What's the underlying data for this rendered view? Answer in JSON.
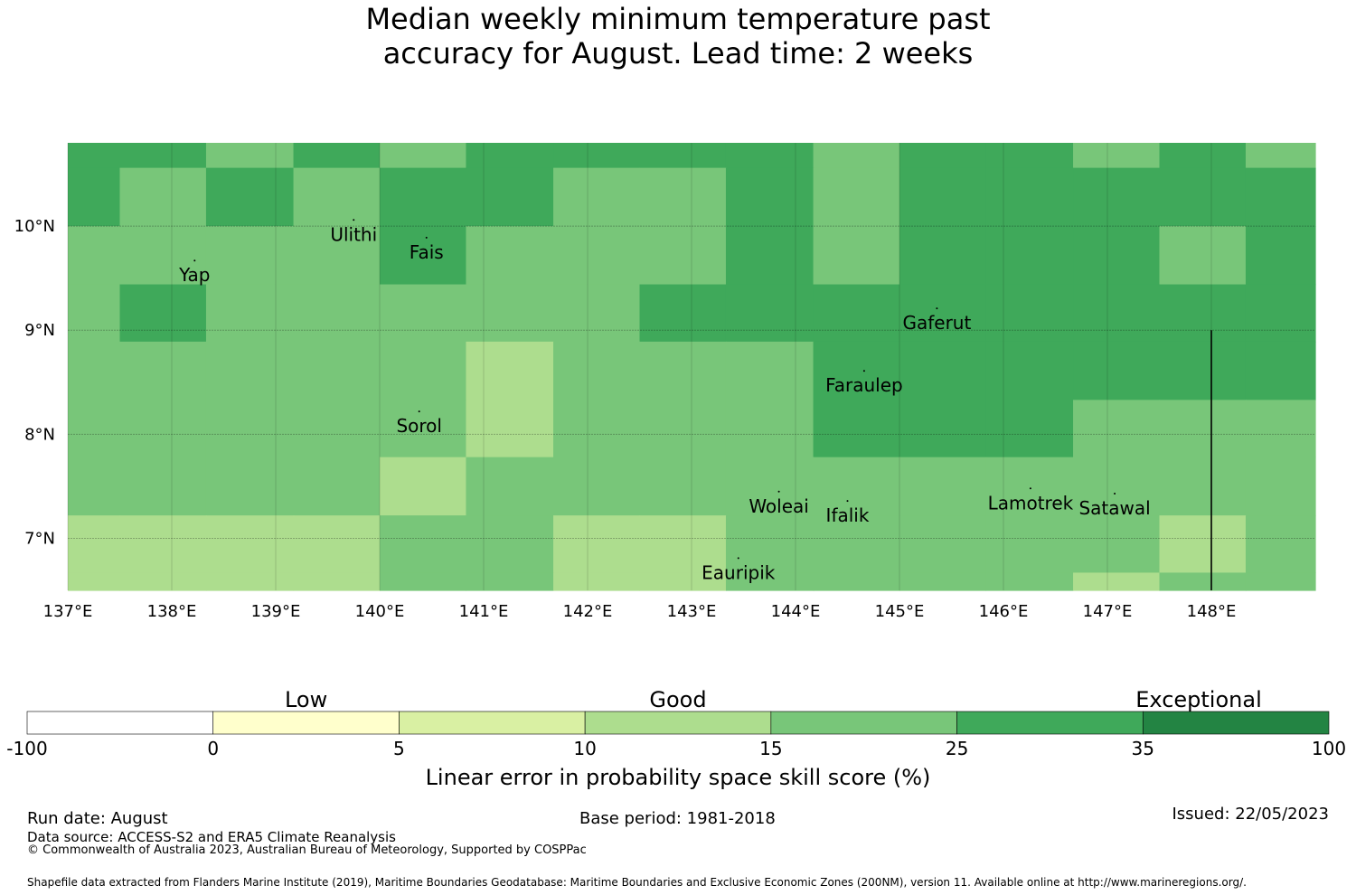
{
  "title": {
    "line1": "Median weekly minimum temperature past",
    "line2": "accuracy for August. Lead time: 2 weeks"
  },
  "map": {
    "lon_range": [
      137,
      149
    ],
    "lat_range": [
      6.5,
      10.8
    ],
    "lon_ticks": [
      {
        "value": 137,
        "label": "137°E"
      },
      {
        "value": 138,
        "label": "138°E"
      },
      {
        "value": 139,
        "label": "139°E"
      },
      {
        "value": 140,
        "label": "140°E"
      },
      {
        "value": 141,
        "label": "141°E"
      },
      {
        "value": 142,
        "label": "142°E"
      },
      {
        "value": 143,
        "label": "143°E"
      },
      {
        "value": 144,
        "label": "144°E"
      },
      {
        "value": 145,
        "label": "145°E"
      },
      {
        "value": 146,
        "label": "146°E"
      },
      {
        "value": 147,
        "label": "147°E"
      },
      {
        "value": 148,
        "label": "148°E"
      }
    ],
    "lat_ticks": [
      {
        "value": 10,
        "label": "10°N"
      },
      {
        "value": 9,
        "label": "9°N"
      },
      {
        "value": 8,
        "label": "8°N"
      },
      {
        "value": 7,
        "label": "7°N"
      }
    ],
    "grid_cols": [
      137.0,
      137.5,
      138.33,
      139.17,
      140.0,
      140.83,
      141.67,
      142.5,
      143.33,
      144.17,
      145.0,
      145.83,
      146.67,
      147.5,
      148.33,
      149.0
    ],
    "grid_rows": [
      10.8,
      10.56,
      10.0,
      9.44,
      8.89,
      8.33,
      7.78,
      7.22,
      6.67,
      6.5
    ],
    "grid_values": [
      [
        5,
        5,
        4,
        5,
        4,
        5,
        5,
        5,
        5,
        4,
        5,
        5,
        4,
        5,
        4
      ],
      [
        5,
        4,
        5,
        4,
        5,
        5,
        4,
        4,
        5,
        4,
        5,
        5,
        5,
        5,
        5
      ],
      [
        4,
        4,
        4,
        4,
        5,
        4,
        4,
        4,
        5,
        4,
        5,
        5,
        5,
        4,
        5
      ],
      [
        4,
        5,
        4,
        4,
        4,
        4,
        4,
        5,
        5,
        5,
        5,
        5,
        5,
        5,
        5
      ],
      [
        4,
        4,
        4,
        4,
        4,
        3,
        4,
        4,
        4,
        5,
        5,
        5,
        5,
        5,
        5
      ],
      [
        4,
        4,
        4,
        4,
        4,
        3,
        4,
        4,
        4,
        5,
        5,
        5,
        4,
        4,
        4
      ],
      [
        4,
        4,
        4,
        4,
        3,
        4,
        4,
        4,
        4,
        4,
        4,
        4,
        4,
        4,
        4
      ],
      [
        3,
        3,
        3,
        3,
        4,
        4,
        3,
        3,
        4,
        4,
        4,
        4,
        4,
        3,
        4
      ],
      [
        3,
        3,
        3,
        3,
        4,
        4,
        3,
        3,
        4,
        4,
        4,
        4,
        3,
        4,
        4
      ]
    ],
    "places": [
      {
        "name": "Ulithi",
        "lon": 139.75,
        "lat": 9.92
      },
      {
        "name": "Fais",
        "lon": 140.45,
        "lat": 9.75
      },
      {
        "name": "Yap",
        "lon": 138.22,
        "lat": 9.53
      },
      {
        "name": "Gaferut",
        "lon": 145.36,
        "lat": 9.07
      },
      {
        "name": "Faraulep",
        "lon": 144.66,
        "lat": 8.47
      },
      {
        "name": "Sorol",
        "lon": 140.38,
        "lat": 8.08
      },
      {
        "name": "Woleai",
        "lon": 143.84,
        "lat": 7.31
      },
      {
        "name": "Ifalik",
        "lon": 144.5,
        "lat": 7.22
      },
      {
        "name": "Lamotrek",
        "lon": 146.26,
        "lat": 7.34
      },
      {
        "name": "Satawal",
        "lon": 147.07,
        "lat": 7.29
      },
      {
        "name": "Eauripik",
        "lon": 143.45,
        "lat": 6.67
      }
    ],
    "boundary_line": {
      "lon": 148.0,
      "lat_from": 6.5,
      "lat_to": 9.0
    }
  },
  "colorbar": {
    "categories": [
      {
        "label": "Low",
        "at": 1.5
      },
      {
        "label": "Good",
        "at": 3.5
      },
      {
        "label": "Exceptional",
        "at": 6.3
      }
    ],
    "bins": [
      {
        "color": "#ffffff"
      },
      {
        "color": "#ffffcc"
      },
      {
        "color": "#d9f0a3"
      },
      {
        "color": "#addd8e"
      },
      {
        "color": "#78c679"
      },
      {
        "color": "#3fa95a"
      },
      {
        "color": "#238443"
      }
    ],
    "tick_labels": [
      "-100",
      "0",
      "5",
      "10",
      "15",
      "25",
      "35",
      "100"
    ],
    "axis_label": "Linear error in probability space skill score (%)"
  },
  "footer": {
    "run_date": "Run date: August",
    "base_period": "Base period: 1981-2018",
    "issued": "Issued: 22/05/2023",
    "data_source": "Data source: ACCESS-S2 and ERA5 Climate Reanalysis",
    "copyright": "© Commonwealth of Australia 2023, Australian Bureau of Meteorology, Supported by COSPPac",
    "shapefile": "Shapefile data extracted from Flanders Marine Institute (2019), Maritime Boundaries Geodatabase: Maritime Boundaries and Exclusive Economic Zones (200NM), version 11. Available online at http://www.marineregions.org/."
  }
}
